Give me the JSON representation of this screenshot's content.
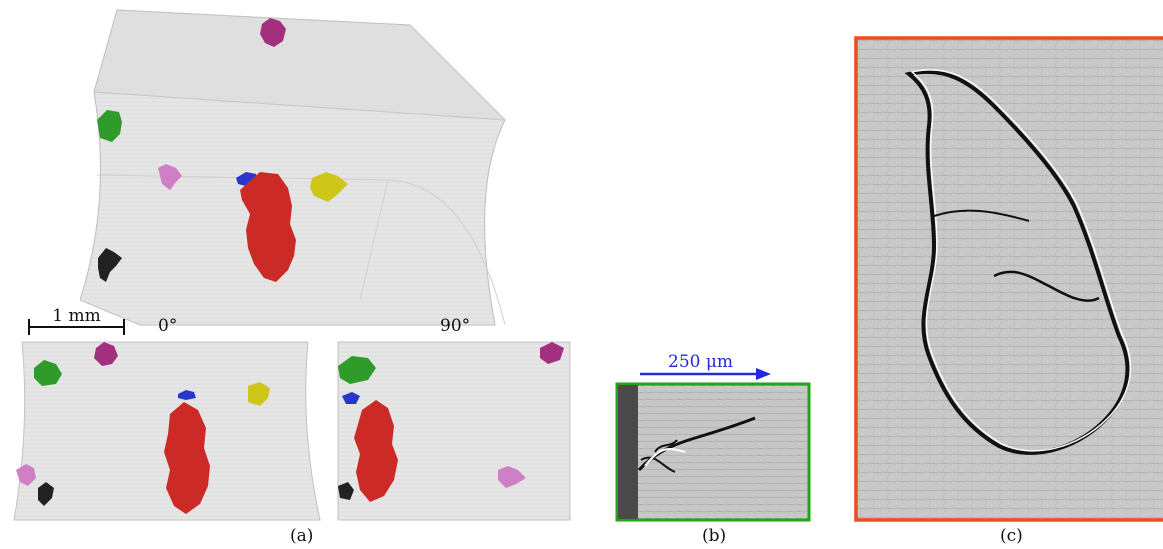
{
  "figure": {
    "panel_a": {
      "caption": "(a)",
      "scale_bar": "1 mm",
      "view_left_angle": "0°",
      "view_right_angle": "90°"
    },
    "panel_b": {
      "caption": "(b)",
      "scale_bar": "250 μm",
      "frame_color": "#22a31a"
    },
    "panel_c": {
      "caption": "(c)",
      "frame_color": "#ee4b1f"
    },
    "defect_colors": {
      "red": "#cc2a26",
      "green": "#2e9b2a",
      "magenta": "#a3307e",
      "pink": "#cf7fc6",
      "yellow": "#cfc61c",
      "blue": "#2a35c9",
      "black": "#222222"
    }
  }
}
